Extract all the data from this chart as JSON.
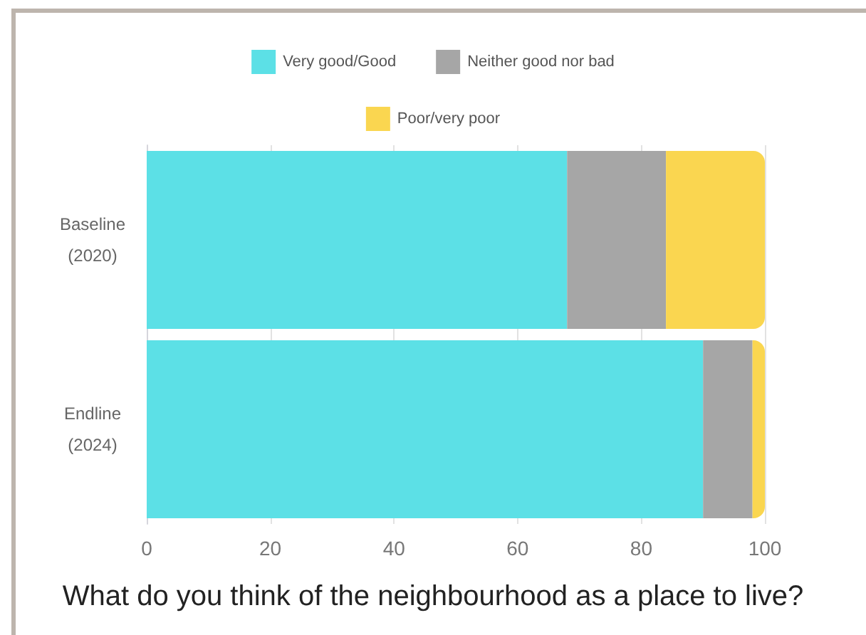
{
  "chart_data": {
    "type": "bar",
    "title": "What do you think of the neighbourhood as a place to live?",
    "categories": [
      "Baseline\n(2020)",
      "Endline\n(2024)"
    ],
    "orientation": "horizontal",
    "stacked": true,
    "series": [
      {
        "name": "Very good/Good",
        "color": "#5ce0e6",
        "values": [
          68,
          90
        ]
      },
      {
        "name": "Neither good nor bad",
        "color": "#a6a6a6",
        "values": [
          16,
          8
        ]
      },
      {
        "name": "Poor/very poor",
        "color": "#fad650",
        "values": [
          16,
          2
        ]
      }
    ],
    "xlim": [
      0,
      100
    ],
    "xticks": [
      0,
      20,
      40,
      60,
      80,
      100
    ],
    "grid": "x",
    "legend": "top"
  }
}
